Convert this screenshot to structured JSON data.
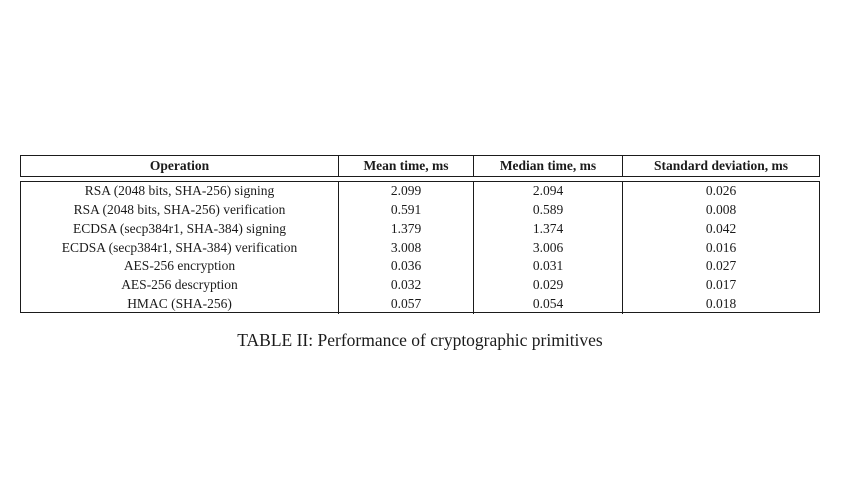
{
  "caption": "TABLE II: Performance of cryptographic primitives",
  "table": {
    "headers": [
      "Operation",
      "Mean time, ms",
      "Median time, ms",
      "Standard deviation, ms"
    ],
    "rows": [
      [
        "RSA (2048 bits, SHA-256) signing",
        "2.099",
        "2.094",
        "0.026"
      ],
      [
        "RSA (2048 bits, SHA-256) verification",
        "0.591",
        "0.589",
        "0.008"
      ],
      [
        "ECDSA (secp384r1, SHA-384) signing",
        "1.379",
        "1.374",
        "0.042"
      ],
      [
        "ECDSA (secp384r1, SHA-384) verification",
        "3.008",
        "3.006",
        "0.016"
      ],
      [
        "AES-256 encryption",
        "0.036",
        "0.031",
        "0.027"
      ],
      [
        "AES-256 descryption",
        "0.032",
        "0.029",
        "0.017"
      ],
      [
        "HMAC (SHA-256)",
        "0.057",
        "0.054",
        "0.018"
      ]
    ]
  },
  "colors": {
    "text": "#1b1b1b",
    "border": "#1b1b1b",
    "background": "#ffffff"
  }
}
